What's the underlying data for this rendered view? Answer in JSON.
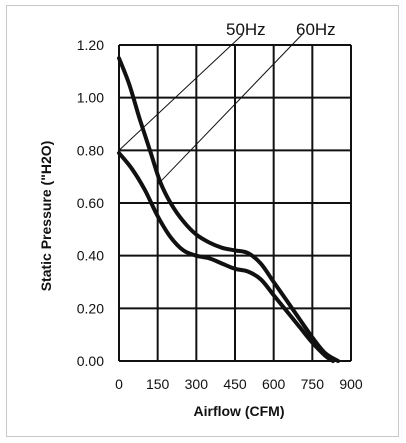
{
  "chart_data": {
    "type": "line",
    "xlabel": "Airflow (CFM)",
    "ylabel": "Static Pressure  (\"H2O)",
    "xlim": [
      0,
      900
    ],
    "ylim": [
      0,
      1.2
    ],
    "x_ticks": [
      0,
      150,
      300,
      450,
      600,
      750,
      900
    ],
    "x_tick_labels": [
      "0",
      "150",
      "300",
      "450",
      "600",
      "750",
      "900"
    ],
    "y_ticks": [
      0,
      0.2,
      0.4,
      0.6,
      0.8,
      1.0,
      1.2
    ],
    "y_tick_labels": [
      "0.00",
      "0.20",
      "0.40",
      "0.60",
      "0.80",
      "1.00",
      "1.20"
    ],
    "grid": true,
    "series": [
      {
        "name": "60Hz",
        "x": [
          0,
          40,
          80,
          120,
          160,
          200,
          250,
          300,
          350,
          400,
          450,
          500,
          550,
          600,
          650,
          700,
          750,
          800,
          850
        ],
        "y": [
          1.15,
          1.05,
          0.92,
          0.8,
          0.68,
          0.6,
          0.53,
          0.48,
          0.45,
          0.43,
          0.42,
          0.41,
          0.37,
          0.3,
          0.23,
          0.16,
          0.09,
          0.03,
          0.0
        ]
      },
      {
        "name": "50Hz",
        "x": [
          0,
          50,
          100,
          150,
          200,
          250,
          300,
          350,
          400,
          450,
          500,
          550,
          600,
          650,
          700,
          750,
          800,
          830
        ],
        "y": [
          0.79,
          0.73,
          0.65,
          0.55,
          0.47,
          0.42,
          0.4,
          0.39,
          0.37,
          0.35,
          0.34,
          0.31,
          0.25,
          0.19,
          0.13,
          0.07,
          0.02,
          0.0
        ]
      }
    ],
    "reference_lines": [
      {
        "label": "50Hz",
        "x": [
          0,
          480
        ],
        "y": [
          0.8,
          1.24
        ]
      },
      {
        "label": "60Hz",
        "x": [
          150,
          710
        ],
        "y": [
          0.67,
          1.24
        ]
      }
    ]
  }
}
